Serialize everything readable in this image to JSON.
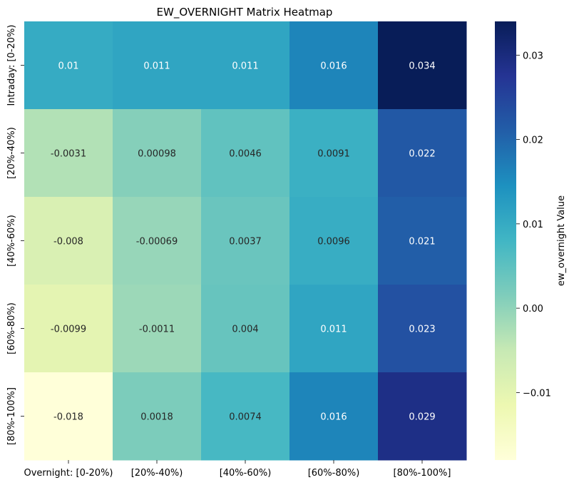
{
  "chart_data": {
    "type": "heatmap",
    "title": "EW_OVERNIGHT Matrix Heatmap",
    "xlabel": "",
    "ylabel": "",
    "x_categories": [
      "Overnight: [0-20%)",
      "[20%-40%)",
      "[40%-60%)",
      "[60%-80%)",
      "[80%-100%]"
    ],
    "y_categories": [
      "Intraday: [0-20%)",
      "[20%-40%)",
      "[40%-60%)",
      "[60%-80%)",
      "[80%-100%]"
    ],
    "values": [
      [
        0.01,
        0.011,
        0.011,
        0.016,
        0.034
      ],
      [
        -0.0031,
        0.00098,
        0.0046,
        0.0091,
        0.022
      ],
      [
        -0.008,
        -0.00069,
        0.0037,
        0.0096,
        0.021
      ],
      [
        -0.0099,
        -0.0011,
        0.004,
        0.011,
        0.023
      ],
      [
        -0.018,
        0.0018,
        0.0074,
        0.016,
        0.029
      ]
    ],
    "cell_labels": [
      [
        "0.01",
        "0.011",
        "0.011",
        "0.016",
        "0.034"
      ],
      [
        "-0.0031",
        "0.00098",
        "0.0046",
        "0.0091",
        "0.022"
      ],
      [
        "-0.008",
        "-0.00069",
        "0.0037",
        "0.0096",
        "0.021"
      ],
      [
        "-0.0099",
        "-0.0011",
        "0.004",
        "0.011",
        "0.023"
      ],
      [
        "-0.018",
        "0.0018",
        "0.0074",
        "0.016",
        "0.029"
      ]
    ],
    "colorbar": {
      "label": "ew_overnight Value",
      "vmin": -0.018,
      "vmax": 0.034,
      "ticks": [
        -0.01,
        0.0,
        0.01,
        0.02,
        0.03
      ],
      "tick_labels": [
        "−0.01",
        "0.00",
        "0.01",
        "0.02",
        "0.03"
      ],
      "colormap": "YlGnBu",
      "colormap_stops": [
        "#ffffd9",
        "#edf8b1",
        "#c7e9b4",
        "#7fcdbb",
        "#41b6c4",
        "#1d91c0",
        "#225ea8",
        "#253494",
        "#081d58"
      ]
    },
    "annotation_text_dark": "#262626",
    "annotation_text_light": "#ffffff"
  }
}
